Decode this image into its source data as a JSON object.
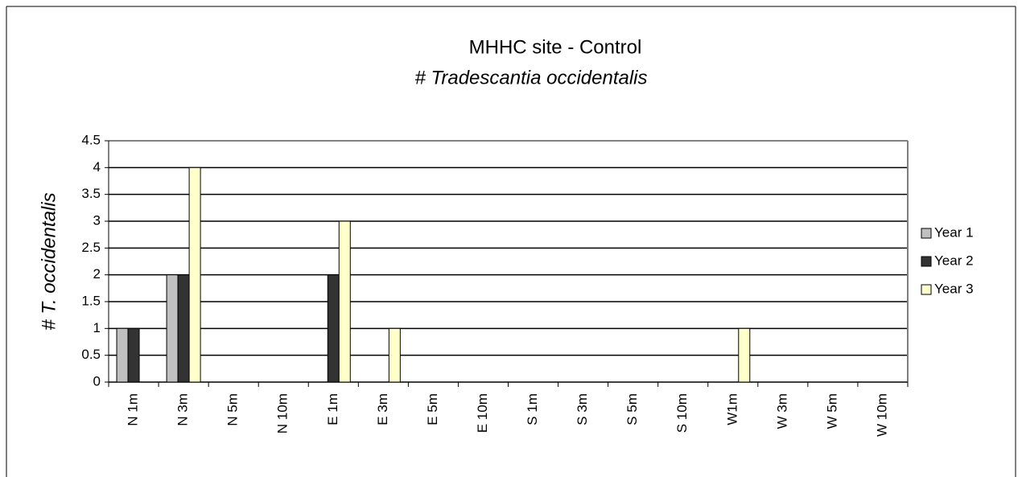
{
  "chart_data": {
    "type": "bar",
    "title": "MHHC site - Control",
    "subtitle": "# Tradescantia occidentalis",
    "y_label": "# T. occidentalis",
    "categories": [
      "N 1m",
      "N 3m",
      "N 5m",
      "N 10m",
      "E 1m",
      "E 3m",
      "E 5m",
      "E 10m",
      "S 1m",
      "S 3m",
      "S 5m",
      "S 10m",
      "W1m",
      "W 3m",
      "W 5m",
      "W 10m"
    ],
    "series": [
      {
        "name": "Year 1",
        "color": "#c0c0c0",
        "values": [
          1,
          2,
          0,
          0,
          0,
          0,
          0,
          0,
          0,
          0,
          0,
          0,
          0,
          0,
          0,
          0
        ]
      },
      {
        "name": "Year 2",
        "color": "#333333",
        "values": [
          1,
          2,
          0,
          0,
          2,
          0,
          0,
          0,
          0,
          0,
          0,
          0,
          0,
          0,
          0,
          0
        ]
      },
      {
        "name": "Year 3",
        "color": "#ffffcc",
        "values": [
          0,
          4,
          0,
          0,
          3,
          1,
          0,
          0,
          0,
          0,
          0,
          0,
          1,
          0,
          0,
          0
        ]
      }
    ],
    "ylim": [
      0,
      4.5
    ],
    "yticks": [
      0,
      0.5,
      1,
      1.5,
      2,
      2.5,
      3,
      3.5,
      4,
      4.5
    ],
    "grid": true,
    "legend": "right"
  }
}
